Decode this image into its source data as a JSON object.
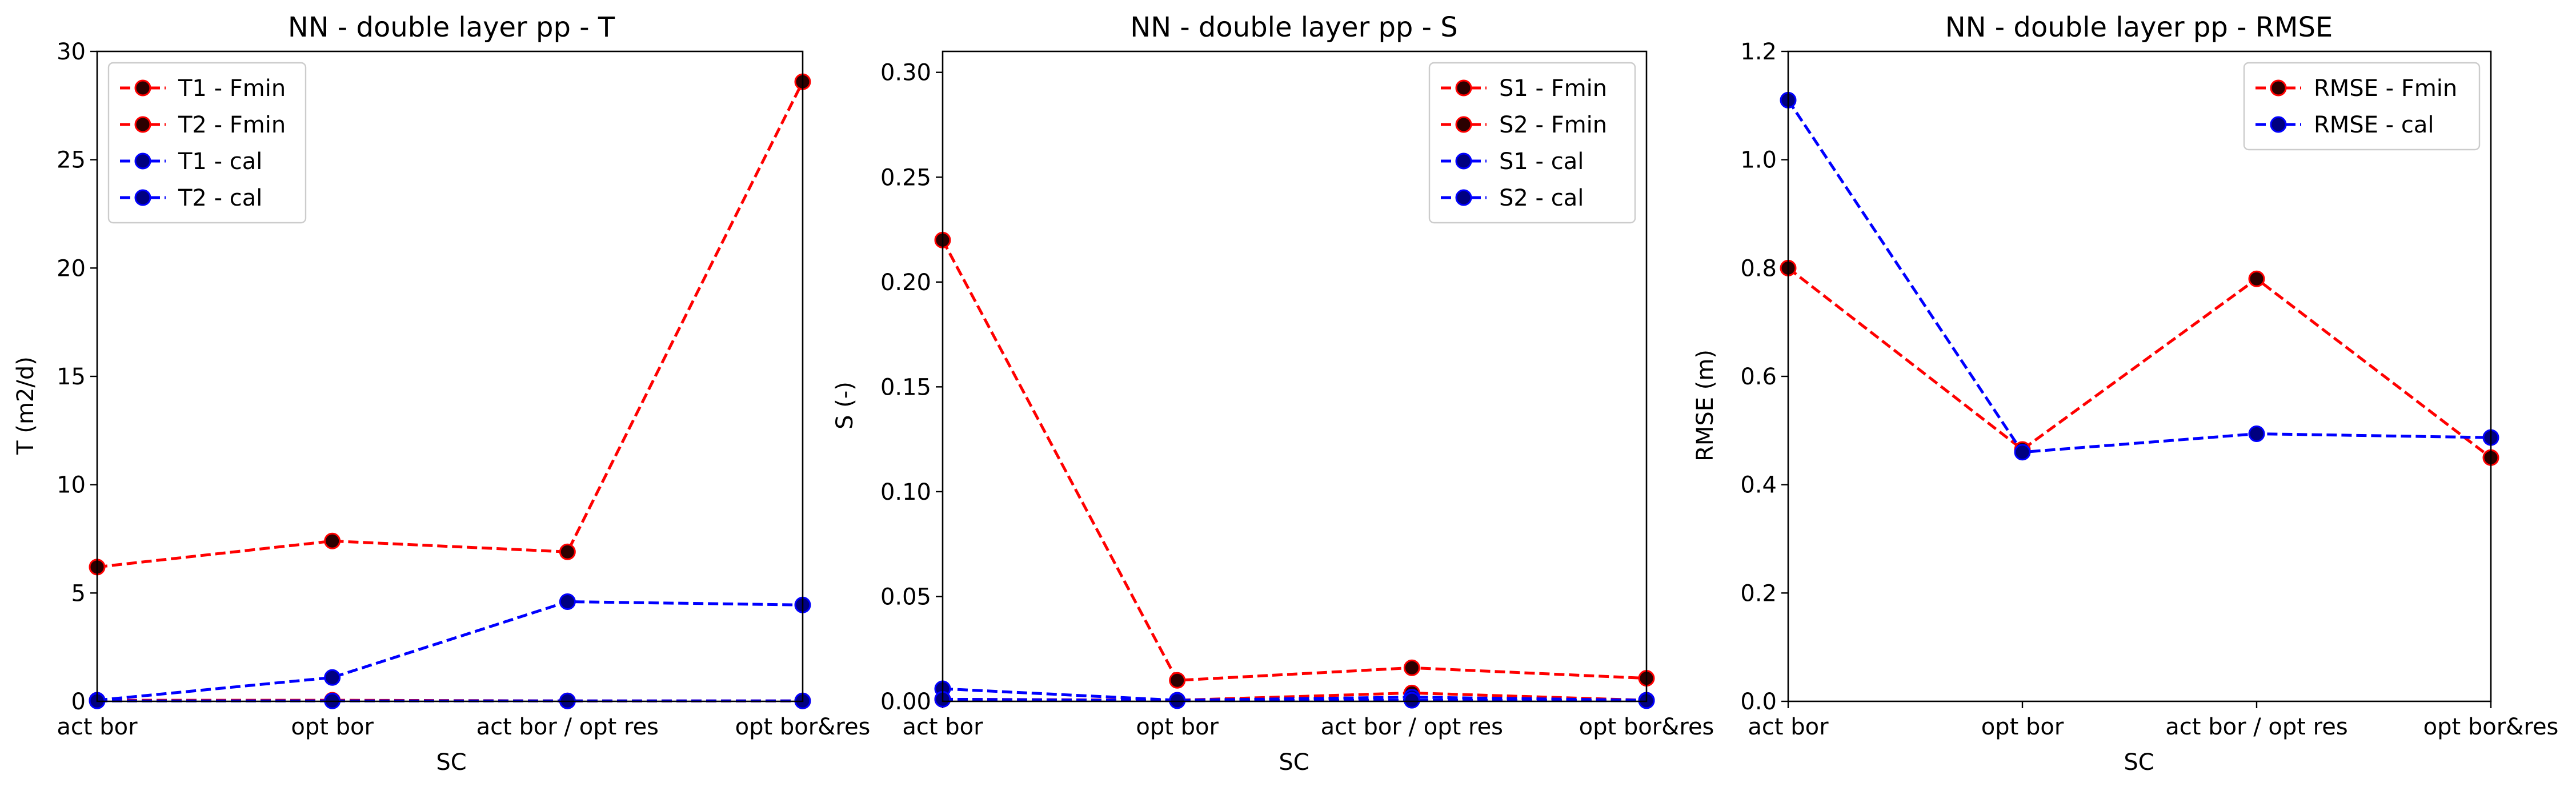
{
  "colors": {
    "fmin": "#ff0000",
    "cal": "#0000ff",
    "fmin_marker_face": "#2b0000",
    "cal_marker_face": "#000080"
  },
  "chart_data": [
    {
      "type": "line",
      "title": "NN - double layer pp - T",
      "xlabel": "SC",
      "ylabel": "T (m2/d)",
      "categories": [
        "act bor",
        "opt bor",
        "act bor / opt res",
        "opt bor&res"
      ],
      "ylim": [
        0,
        30
      ],
      "yticks": [
        "0",
        "5",
        "10",
        "15",
        "20",
        "25",
        "30"
      ],
      "legend_position": "upper-left",
      "series": [
        {
          "name": "T1 - Fmin",
          "color": "#ff0000",
          "face": "#2b0000",
          "values": [
            6.2,
            7.4,
            6.9,
            28.6
          ]
        },
        {
          "name": "T2 - Fmin",
          "color": "#ff0000",
          "face": "#2b0000",
          "values": [
            0.05,
            0.05,
            0.02,
            0.02
          ]
        },
        {
          "name": "T1 - cal",
          "color": "#0000ff",
          "face": "#000080",
          "values": [
            0.05,
            1.1,
            4.6,
            4.45
          ]
        },
        {
          "name": "T2 - cal",
          "color": "#0000ff",
          "face": "#000080",
          "values": [
            0.02,
            0.02,
            0.02,
            0.02
          ]
        }
      ]
    },
    {
      "type": "line",
      "title": "NN - double layer pp - S",
      "xlabel": "SC",
      "ylabel": "S (-)",
      "categories": [
        "act bor",
        "opt bor",
        "act bor / opt res",
        "opt bor&res"
      ],
      "ylim": [
        0,
        0.31
      ],
      "yticks": [
        "0.00",
        "0.05",
        "0.10",
        "0.15",
        "0.20",
        "0.25",
        "0.30"
      ],
      "legend_position": "upper-right",
      "series": [
        {
          "name": "S1 - Fmin",
          "color": "#ff0000",
          "face": "#2b0000",
          "values": [
            0.22,
            0.01,
            0.016,
            0.011
          ]
        },
        {
          "name": "S2 - Fmin",
          "color": "#ff0000",
          "face": "#2b0000",
          "values": [
            0.001,
            0.0005,
            0.004,
            0.0005
          ]
        },
        {
          "name": "S1 - cal",
          "color": "#0000ff",
          "face": "#000080",
          "values": [
            0.006,
            0.0005,
            0.002,
            0.0005
          ]
        },
        {
          "name": "S2 - cal",
          "color": "#0000ff",
          "face": "#000080",
          "values": [
            0.001,
            0.0003,
            0.0005,
            0.0003
          ]
        }
      ]
    },
    {
      "type": "line",
      "title": "NN - double layer pp - RMSE",
      "xlabel": "SC",
      "ylabel": "RMSE (m)",
      "categories": [
        "act bor",
        "opt bor",
        "act bor / opt res",
        "opt bor&res"
      ],
      "ylim": [
        0,
        1.2
      ],
      "yticks": [
        "0.0",
        "0.2",
        "0.4",
        "0.6",
        "0.8",
        "1.0",
        "1.2"
      ],
      "legend_position": "upper-right",
      "series": [
        {
          "name": "RMSE - Fmin",
          "color": "#ff0000",
          "face": "#2b0000",
          "values": [
            0.8,
            0.465,
            0.78,
            0.45
          ]
        },
        {
          "name": "RMSE - cal",
          "color": "#0000ff",
          "face": "#000080",
          "values": [
            1.11,
            0.46,
            0.494,
            0.487
          ]
        }
      ]
    }
  ]
}
